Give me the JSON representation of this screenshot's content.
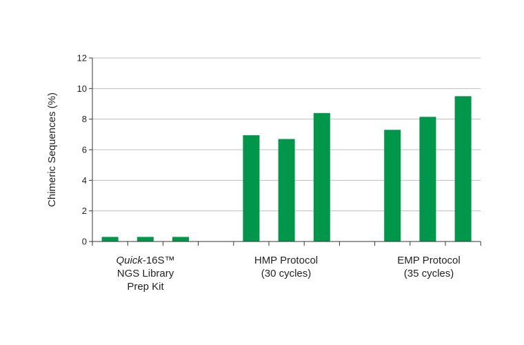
{
  "chart_data": {
    "type": "bar",
    "ylabel": "Chimeric Sequences (%)",
    "ylim": [
      0,
      12
    ],
    "yticks": [
      0,
      2,
      4,
      6,
      8,
      10,
      12
    ],
    "grid": true,
    "legend": "none",
    "bar_color": "#00974A",
    "groups": [
      {
        "label_italic": "Quick",
        "label_line1_rest": "-16S™",
        "label_line2": "NGS Library",
        "label_line3": "Prep Kit",
        "values": [
          0.3,
          0.3,
          0.3
        ]
      },
      {
        "label_line1": "HMP Protocol",
        "label_line2": "(30 cycles)",
        "values": [
          6.95,
          6.7,
          8.4
        ]
      },
      {
        "label_line1": "EMP Protocol",
        "label_line2": "(35 cycles)",
        "values": [
          7.3,
          8.15,
          9.5
        ]
      }
    ]
  }
}
